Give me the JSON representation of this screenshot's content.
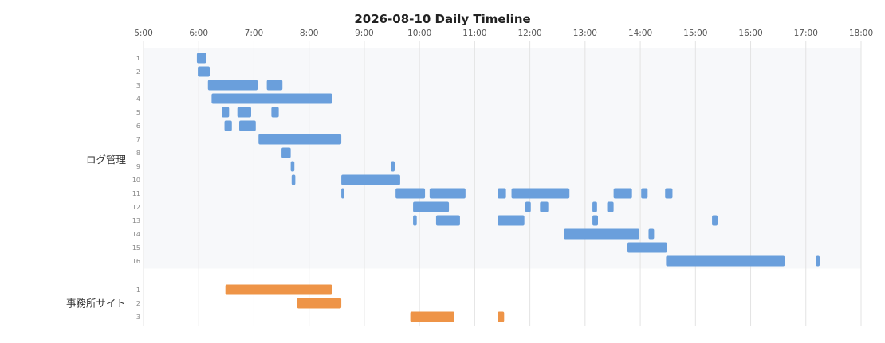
{
  "chart_data": {
    "type": "timeline",
    "title": "2026-08-10 Daily Timeline",
    "x_ticks": [
      "5:00",
      "6:00",
      "7:00",
      "8:00",
      "9:00",
      "10:00",
      "11:00",
      "12:00",
      "13:00",
      "14:00",
      "15:00",
      "16:00",
      "17:00",
      "18:00"
    ],
    "xlim": [
      "5:00",
      "18:00"
    ],
    "grid": true,
    "groups": [
      {
        "name": "ログ管理",
        "color": "#6a9fdc",
        "background": "#f7f8fa",
        "rows": [
          {
            "label": "1",
            "segments": [
              [
                "5:58",
                "6:08"
              ]
            ]
          },
          {
            "label": "2",
            "segments": [
              [
                "5:59",
                "6:12"
              ]
            ]
          },
          {
            "label": "3",
            "segments": [
              [
                "6:10",
                "7:04"
              ],
              [
                "7:14",
                "7:31"
              ]
            ]
          },
          {
            "label": "4",
            "segments": [
              [
                "6:14",
                "8:25"
              ]
            ]
          },
          {
            "label": "5",
            "segments": [
              [
                "6:25",
                "6:33"
              ],
              [
                "6:42",
                "6:57"
              ],
              [
                "7:19",
                "7:27"
              ]
            ]
          },
          {
            "label": "6",
            "segments": [
              [
                "6:28",
                "6:36"
              ],
              [
                "6:44",
                "7:02"
              ]
            ]
          },
          {
            "label": "7",
            "segments": [
              [
                "7:05",
                "8:35"
              ]
            ]
          },
          {
            "label": "8",
            "segments": [
              [
                "7:30",
                "7:40"
              ]
            ]
          },
          {
            "label": "9",
            "segments": [
              [
                "7:40",
                "7:44"
              ],
              [
                "9:29",
                "9:33"
              ]
            ]
          },
          {
            "label": "10",
            "segments": [
              [
                "7:41",
                "7:45"
              ],
              [
                "8:35",
                "9:39"
              ]
            ]
          },
          {
            "label": "11",
            "segments": [
              [
                "8:35",
                "8:38"
              ],
              [
                "9:34",
                "10:06"
              ],
              [
                "10:11",
                "10:50"
              ],
              [
                "11:25",
                "11:34"
              ],
              [
                "11:40",
                "12:43"
              ],
              [
                "13:31",
                "13:51"
              ],
              [
                "14:01",
                "14:08"
              ],
              [
                "14:27",
                "14:35"
              ]
            ]
          },
          {
            "label": "12",
            "segments": [
              [
                "9:53",
                "10:32"
              ],
              [
                "11:55",
                "12:01"
              ],
              [
                "12:11",
                "12:20"
              ],
              [
                "13:08",
                "13:13"
              ],
              [
                "13:24",
                "13:31"
              ]
            ]
          },
          {
            "label": "13",
            "segments": [
              [
                "9:53",
                "9:57"
              ],
              [
                "10:18",
                "10:44"
              ],
              [
                "11:25",
                "11:54"
              ],
              [
                "13:08",
                "13:14"
              ],
              [
                "15:18",
                "15:24"
              ]
            ]
          },
          {
            "label": "14",
            "segments": [
              [
                "12:37",
                "13:59"
              ],
              [
                "14:09",
                "14:15"
              ]
            ]
          },
          {
            "label": "15",
            "segments": [
              [
                "13:46",
                "14:29"
              ]
            ]
          },
          {
            "label": "16",
            "segments": [
              [
                "14:28",
                "16:37"
              ],
              [
                "17:11",
                "17:15"
              ]
            ]
          }
        ]
      },
      {
        "name": "事務所サイト",
        "color": "#ee9447",
        "background": "#ffffff",
        "rows": [
          {
            "label": "1",
            "segments": [
              [
                "6:29",
                "8:25"
              ]
            ]
          },
          {
            "label": "2",
            "segments": [
              [
                "7:47",
                "8:35"
              ]
            ]
          },
          {
            "label": "3",
            "segments": [
              [
                "9:50",
                "10:38"
              ],
              [
                "11:25",
                "11:32"
              ]
            ]
          }
        ]
      }
    ]
  }
}
